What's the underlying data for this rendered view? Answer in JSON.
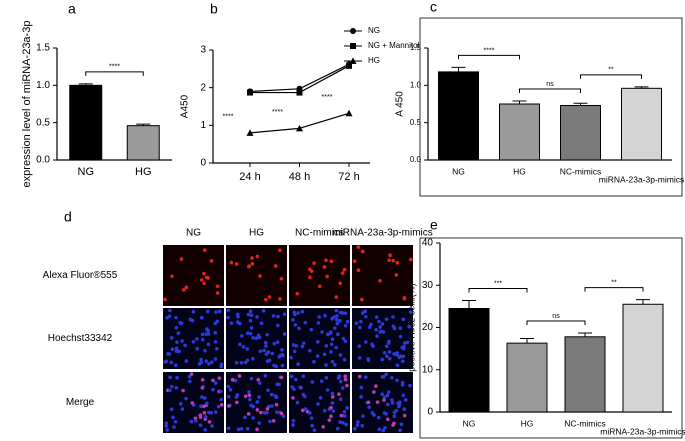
{
  "chart_data": [
    {
      "type": "bar",
      "label": "a",
      "ylabel": "expression level of miRNA-23a-3p",
      "categories": [
        "NG",
        "HG"
      ],
      "values": [
        1.0,
        0.46
      ],
      "errors": [
        0.02,
        0.02
      ],
      "colors": [
        "#000000",
        "#9a9a9a"
      ],
      "ylim": [
        0,
        1.5
      ],
      "yticks": [
        {
          "value": 0,
          "label": "0.0"
        },
        {
          "value": 0.5,
          "label": "0.5"
        },
        {
          "value": 1,
          "label": "1.0"
        },
        {
          "value": 1.5,
          "label": "1.5"
        }
      ],
      "annotations": [
        "****"
      ]
    },
    {
      "type": "line",
      "label": "b",
      "ylabel": "A450",
      "categories": [
        "24 h",
        "48 h",
        "72 h"
      ],
      "series": [
        {
          "name": "NG",
          "color": "#000000",
          "marker": "circle",
          "values": [
            1.9,
            1.97,
            2.62
          ]
        },
        {
          "name": "NG + Mannitol",
          "color": "#000000",
          "marker": "square",
          "values": [
            1.87,
            1.87,
            2.58
          ]
        },
        {
          "name": "HG",
          "color": "#000000",
          "marker": "triangle",
          "values": [
            0.8,
            0.92,
            1.32
          ]
        }
      ],
      "ylim": [
        0,
        3
      ],
      "yticks": [
        0,
        1,
        2,
        3
      ],
      "annotations": [
        "****",
        "****",
        "****"
      ]
    },
    {
      "type": "bar",
      "label": "c",
      "ylabel": "A 450",
      "categories": [
        "NG",
        "HG",
        "NC-mimics",
        "miRNA-23a-3p-mimics"
      ],
      "values": [
        1.18,
        0.75,
        0.73,
        0.96
      ],
      "errors": [
        0.06,
        0.04,
        0.03,
        0.02
      ],
      "colors": [
        "#000000",
        "#9a9a9a",
        "#7a7a7a",
        "#d4d4d4"
      ],
      "ylim": [
        0,
        1.5
      ],
      "yticks": [
        {
          "value": 0,
          "label": "0.0"
        },
        {
          "value": 0.5,
          "label": "0.5"
        },
        {
          "value": 1,
          "label": "1.0"
        },
        {
          "value": 1.5,
          "label": "1.5"
        }
      ],
      "annotations": [
        "****",
        "ns",
        "**"
      ]
    },
    {
      "type": "bar",
      "label": "e",
      "ylabel": "positive H9c2 cells(%)",
      "categories": [
        "NG",
        "HG",
        "NC-mimics",
        "miRNA-23a-3p-mimics"
      ],
      "values": [
        24.5,
        16.3,
        17.8,
        25.5
      ],
      "errors": [
        1.9,
        1.1,
        0.9,
        1.1
      ],
      "colors": [
        "#000000",
        "#9a9a9a",
        "#7a7a7a",
        "#d4d4d4"
      ],
      "ylim": [
        0,
        40
      ],
      "yticks": [
        0,
        10,
        20,
        30,
        40
      ],
      "annotations": [
        "***",
        "ns",
        "**"
      ]
    }
  ],
  "image_panel": {
    "label": "d",
    "columns": [
      "NG",
      "HG",
      "NC-mimics",
      "miRNA-23a-3p-mimics"
    ],
    "rows": [
      "Alexa Fluor®555",
      "Hoechst33342",
      "Merge"
    ]
  }
}
